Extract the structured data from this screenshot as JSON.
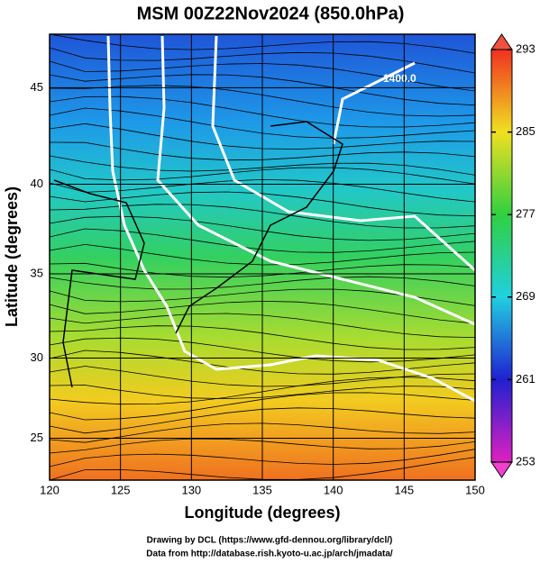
{
  "title": "MSM 00Z22Nov2024 (850.0hPa)",
  "plot": {
    "xlabel": "Longitude (degrees)",
    "ylabel": "Latitude  (degrees)",
    "xlim": [
      120,
      150
    ],
    "ylim": [
      22.3,
      47.6
    ],
    "xticks": [
      120,
      125,
      130,
      135,
      140,
      145,
      150
    ],
    "yticks": [
      25,
      30,
      35,
      40,
      45
    ],
    "contour_labels": [
      "1400.0"
    ]
  },
  "colorbar": {
    "lim": [
      253,
      293
    ],
    "ticks": [
      253,
      261,
      269,
      277,
      285,
      293
    ]
  },
  "credits": [
    "Drawing by DCL (https://www.gfd-dennou.org/library/dcl/)",
    "Data from http://database.rish.kyoto-u.ac.jp/arch/jmadata/"
  ]
}
